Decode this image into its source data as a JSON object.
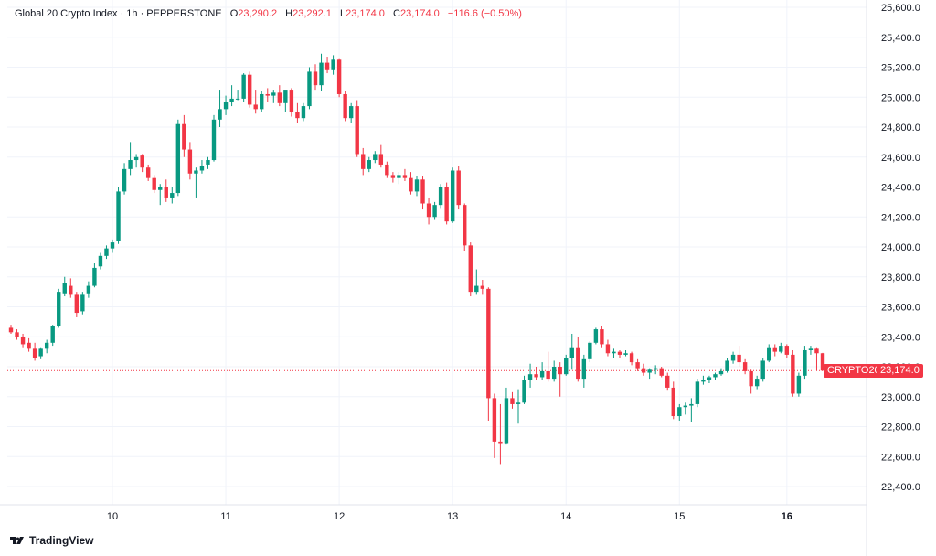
{
  "header": {
    "title": "Global 20 Crypto Index · 1h · PEPPERSTONE",
    "o_label": "O",
    "o_value": "23,290.2",
    "h_label": "H",
    "h_value": "23,292.1",
    "l_label": "L",
    "l_value": "23,174.0",
    "c_label": "C",
    "c_value": "23,174.0",
    "change": "−116.6 (−0.50%)"
  },
  "price_tags": {
    "symbol": "CRYPTO20",
    "last": "23,174.0"
  },
  "brand": {
    "name": "TradingView",
    "icon": "tradingview-logo-icon"
  },
  "colors": {
    "up": "#089981",
    "down": "#f23645",
    "grid": "#f0f3fa",
    "text": "#131722"
  },
  "chart_data": {
    "type": "candlestick",
    "ylim": [
      22300,
      25600
    ],
    "y_ticks": [
      "25,600.0",
      "25,400.0",
      "25,200.0",
      "25,000.0",
      "24,800.0",
      "24,600.0",
      "24,400.0",
      "24,200.0",
      "24,000.0",
      "23,800.0",
      "23,600.0",
      "23,400.0",
      "23,200.0",
      "23,000.0",
      "22,800.0",
      "22,600.0",
      "22,400.0"
    ],
    "y_tick_values": [
      25600,
      25400,
      25200,
      25000,
      24800,
      24600,
      24400,
      24200,
      24000,
      23800,
      23600,
      23400,
      23200,
      23000,
      22800,
      22600,
      22400
    ],
    "x_ticks": [
      {
        "label": "10",
        "bar": 17
      },
      {
        "label": "11",
        "bar": 36
      },
      {
        "label": "12",
        "bar": 55
      },
      {
        "label": "13",
        "bar": 74
      },
      {
        "label": "14",
        "bar": 93
      },
      {
        "label": "15",
        "bar": 112
      },
      {
        "label": "16",
        "bar": 130
      }
    ],
    "last_price": 23174.0,
    "candles": [
      {
        "o": 23460,
        "h": 23480,
        "l": 23420,
        "c": 23430
      },
      {
        "o": 23430,
        "h": 23450,
        "l": 23380,
        "c": 23400
      },
      {
        "o": 23400,
        "h": 23420,
        "l": 23330,
        "c": 23350
      },
      {
        "o": 23360,
        "h": 23390,
        "l": 23300,
        "c": 23320
      },
      {
        "o": 23320,
        "h": 23360,
        "l": 23240,
        "c": 23260
      },
      {
        "o": 23270,
        "h": 23330,
        "l": 23250,
        "c": 23320
      },
      {
        "o": 23320,
        "h": 23380,
        "l": 23290,
        "c": 23360
      },
      {
        "o": 23360,
        "h": 23480,
        "l": 23340,
        "c": 23470
      },
      {
        "o": 23470,
        "h": 23720,
        "l": 23460,
        "c": 23700
      },
      {
        "o": 23690,
        "h": 23800,
        "l": 23670,
        "c": 23760
      },
      {
        "o": 23740,
        "h": 23790,
        "l": 23660,
        "c": 23680
      },
      {
        "o": 23680,
        "h": 23700,
        "l": 23530,
        "c": 23560
      },
      {
        "o": 23570,
        "h": 23700,
        "l": 23550,
        "c": 23680
      },
      {
        "o": 23690,
        "h": 23770,
        "l": 23660,
        "c": 23740
      },
      {
        "o": 23740,
        "h": 23890,
        "l": 23730,
        "c": 23860
      },
      {
        "o": 23870,
        "h": 23960,
        "l": 23850,
        "c": 23940
      },
      {
        "o": 23940,
        "h": 24010,
        "l": 23920,
        "c": 23990
      },
      {
        "o": 23990,
        "h": 24050,
        "l": 23960,
        "c": 24030
      },
      {
        "o": 24040,
        "h": 24400,
        "l": 24020,
        "c": 24370
      },
      {
        "o": 24370,
        "h": 24560,
        "l": 24350,
        "c": 24520
      },
      {
        "o": 24520,
        "h": 24700,
        "l": 24480,
        "c": 24580
      },
      {
        "o": 24580,
        "h": 24620,
        "l": 24530,
        "c": 24600
      },
      {
        "o": 24610,
        "h": 24620,
        "l": 24500,
        "c": 24530
      },
      {
        "o": 24530,
        "h": 24550,
        "l": 24440,
        "c": 24460
      },
      {
        "o": 24460,
        "h": 24480,
        "l": 24360,
        "c": 24380
      },
      {
        "o": 24380,
        "h": 24420,
        "l": 24280,
        "c": 24400
      },
      {
        "o": 24400,
        "h": 24450,
        "l": 24300,
        "c": 24330
      },
      {
        "o": 24330,
        "h": 24400,
        "l": 24290,
        "c": 24360
      },
      {
        "o": 24360,
        "h": 24850,
        "l": 24340,
        "c": 24820
      },
      {
        "o": 24820,
        "h": 24880,
        "l": 24600,
        "c": 24650
      },
      {
        "o": 24650,
        "h": 24700,
        "l": 24450,
        "c": 24490
      },
      {
        "o": 24490,
        "h": 24530,
        "l": 24330,
        "c": 24510
      },
      {
        "o": 24510,
        "h": 24580,
        "l": 24490,
        "c": 24540
      },
      {
        "o": 24550,
        "h": 24600,
        "l": 24520,
        "c": 24580
      },
      {
        "o": 24580,
        "h": 24880,
        "l": 24570,
        "c": 24850
      },
      {
        "o": 24850,
        "h": 25050,
        "l": 24800,
        "c": 24920
      },
      {
        "o": 24920,
        "h": 25010,
        "l": 24880,
        "c": 24970
      },
      {
        "o": 24970,
        "h": 25080,
        "l": 24940,
        "c": 24990
      },
      {
        "o": 24990,
        "h": 25050,
        "l": 24980,
        "c": 24990
      },
      {
        "o": 24990,
        "h": 25160,
        "l": 24970,
        "c": 25150
      },
      {
        "o": 25150,
        "h": 25170,
        "l": 24930,
        "c": 24950
      },
      {
        "o": 24950,
        "h": 25050,
        "l": 24890,
        "c": 24920
      },
      {
        "o": 24920,
        "h": 25040,
        "l": 24900,
        "c": 25020
      },
      {
        "o": 25020,
        "h": 25060,
        "l": 24970,
        "c": 25010
      },
      {
        "o": 25010,
        "h": 25050,
        "l": 24960,
        "c": 25030
      },
      {
        "o": 25030,
        "h": 25080,
        "l": 24940,
        "c": 24960
      },
      {
        "o": 24960,
        "h": 25040,
        "l": 24900,
        "c": 25050
      },
      {
        "o": 25050,
        "h": 25060,
        "l": 24870,
        "c": 24900
      },
      {
        "o": 24900,
        "h": 24960,
        "l": 24830,
        "c": 24860
      },
      {
        "o": 24860,
        "h": 24960,
        "l": 24840,
        "c": 24940
      },
      {
        "o": 24940,
        "h": 25200,
        "l": 24920,
        "c": 25170
      },
      {
        "o": 25170,
        "h": 25220,
        "l": 25050,
        "c": 25080
      },
      {
        "o": 25080,
        "h": 25290,
        "l": 25040,
        "c": 25230
      },
      {
        "o": 25230,
        "h": 25270,
        "l": 25160,
        "c": 25180
      },
      {
        "o": 25180,
        "h": 25280,
        "l": 25150,
        "c": 25250
      },
      {
        "o": 25250,
        "h": 25260,
        "l": 25000,
        "c": 25020
      },
      {
        "o": 25020,
        "h": 25040,
        "l": 24840,
        "c": 24860
      },
      {
        "o": 24860,
        "h": 24960,
        "l": 24830,
        "c": 24940
      },
      {
        "o": 24940,
        "h": 24980,
        "l": 24600,
        "c": 24620
      },
      {
        "o": 24620,
        "h": 24660,
        "l": 24480,
        "c": 24520
      },
      {
        "o": 24520,
        "h": 24600,
        "l": 24500,
        "c": 24580
      },
      {
        "o": 24580,
        "h": 24640,
        "l": 24560,
        "c": 24620
      },
      {
        "o": 24620,
        "h": 24680,
        "l": 24530,
        "c": 24550
      },
      {
        "o": 24550,
        "h": 24570,
        "l": 24460,
        "c": 24480
      },
      {
        "o": 24480,
        "h": 24500,
        "l": 24430,
        "c": 24460
      },
      {
        "o": 24460,
        "h": 24500,
        "l": 24420,
        "c": 24480
      },
      {
        "o": 24480,
        "h": 24520,
        "l": 24440,
        "c": 24460
      },
      {
        "o": 24460,
        "h": 24500,
        "l": 24350,
        "c": 24370
      },
      {
        "o": 24370,
        "h": 24470,
        "l": 24340,
        "c": 24450
      },
      {
        "o": 24450,
        "h": 24470,
        "l": 24250,
        "c": 24290
      },
      {
        "o": 24290,
        "h": 24330,
        "l": 24150,
        "c": 24200
      },
      {
        "o": 24200,
        "h": 24300,
        "l": 24180,
        "c": 24280
      },
      {
        "o": 24280,
        "h": 24420,
        "l": 24260,
        "c": 24400
      },
      {
        "o": 24400,
        "h": 24430,
        "l": 24150,
        "c": 24170
      },
      {
        "o": 24170,
        "h": 24530,
        "l": 24160,
        "c": 24510
      },
      {
        "o": 24510,
        "h": 24540,
        "l": 24250,
        "c": 24280
      },
      {
        "o": 24280,
        "h": 24290,
        "l": 23970,
        "c": 24010
      },
      {
        "o": 24010,
        "h": 24030,
        "l": 23670,
        "c": 23700
      },
      {
        "o": 23700,
        "h": 23850,
        "l": 23680,
        "c": 23740
      },
      {
        "o": 23740,
        "h": 23780,
        "l": 23680,
        "c": 23720
      },
      {
        "o": 23720,
        "h": 23730,
        "l": 22840,
        "c": 22990
      },
      {
        "o": 22990,
        "h": 23020,
        "l": 22590,
        "c": 22700
      },
      {
        "o": 22700,
        "h": 22950,
        "l": 22550,
        "c": 22690
      },
      {
        "o": 22690,
        "h": 23060,
        "l": 22680,
        "c": 22990
      },
      {
        "o": 22990,
        "h": 23030,
        "l": 22920,
        "c": 22950
      },
      {
        "o": 22950,
        "h": 23050,
        "l": 22820,
        "c": 22960
      },
      {
        "o": 22960,
        "h": 23140,
        "l": 22950,
        "c": 23110
      },
      {
        "o": 23110,
        "h": 23220,
        "l": 23060,
        "c": 23150
      },
      {
        "o": 23150,
        "h": 23200,
        "l": 23110,
        "c": 23130
      },
      {
        "o": 23130,
        "h": 23230,
        "l": 23110,
        "c": 23170
      },
      {
        "o": 23170,
        "h": 23300,
        "l": 23100,
        "c": 23120
      },
      {
        "o": 23120,
        "h": 23240,
        "l": 23100,
        "c": 23200
      },
      {
        "o": 23200,
        "h": 23230,
        "l": 23000,
        "c": 23150
      },
      {
        "o": 23150,
        "h": 23280,
        "l": 23140,
        "c": 23260
      },
      {
        "o": 23260,
        "h": 23420,
        "l": 23180,
        "c": 23330
      },
      {
        "o": 23330,
        "h": 23400,
        "l": 23100,
        "c": 23120
      },
      {
        "o": 23120,
        "h": 23280,
        "l": 23060,
        "c": 23250
      },
      {
        "o": 23250,
        "h": 23370,
        "l": 23230,
        "c": 23360
      },
      {
        "o": 23360,
        "h": 23460,
        "l": 23350,
        "c": 23450
      },
      {
        "o": 23450,
        "h": 23470,
        "l": 23330,
        "c": 23350
      },
      {
        "o": 23350,
        "h": 23380,
        "l": 23270,
        "c": 23290
      },
      {
        "o": 23290,
        "h": 23320,
        "l": 23260,
        "c": 23300
      },
      {
        "o": 23300,
        "h": 23310,
        "l": 23260,
        "c": 23280
      },
      {
        "o": 23280,
        "h": 23310,
        "l": 23270,
        "c": 23290
      },
      {
        "o": 23290,
        "h": 23300,
        "l": 23210,
        "c": 23230
      },
      {
        "o": 23230,
        "h": 23250,
        "l": 23170,
        "c": 23190
      },
      {
        "o": 23190,
        "h": 23220,
        "l": 23140,
        "c": 23160
      },
      {
        "o": 23160,
        "h": 23190,
        "l": 23120,
        "c": 23180
      },
      {
        "o": 23180,
        "h": 23210,
        "l": 23150,
        "c": 23190
      },
      {
        "o": 23190,
        "h": 23200,
        "l": 23130,
        "c": 23140
      },
      {
        "o": 23140,
        "h": 23160,
        "l": 23040,
        "c": 23060
      },
      {
        "o": 23060,
        "h": 23100,
        "l": 22850,
        "c": 22870
      },
      {
        "o": 22870,
        "h": 22950,
        "l": 22840,
        "c": 22930
      },
      {
        "o": 22930,
        "h": 22960,
        "l": 22880,
        "c": 22940
      },
      {
        "o": 22940,
        "h": 22990,
        "l": 22830,
        "c": 22950
      },
      {
        "o": 22950,
        "h": 23120,
        "l": 22930,
        "c": 23100
      },
      {
        "o": 23100,
        "h": 23140,
        "l": 23080,
        "c": 23110
      },
      {
        "o": 23110,
        "h": 23140,
        "l": 23090,
        "c": 23130
      },
      {
        "o": 23130,
        "h": 23160,
        "l": 23110,
        "c": 23150
      },
      {
        "o": 23150,
        "h": 23190,
        "l": 23140,
        "c": 23170
      },
      {
        "o": 23170,
        "h": 23260,
        "l": 23160,
        "c": 23240
      },
      {
        "o": 23240,
        "h": 23300,
        "l": 23220,
        "c": 23280
      },
      {
        "o": 23280,
        "h": 23340,
        "l": 23200,
        "c": 23230
      },
      {
        "o": 23230,
        "h": 23250,
        "l": 23150,
        "c": 23170
      },
      {
        "o": 23170,
        "h": 23180,
        "l": 23020,
        "c": 23070
      },
      {
        "o": 23070,
        "h": 23140,
        "l": 23050,
        "c": 23120
      },
      {
        "o": 23120,
        "h": 23260,
        "l": 23100,
        "c": 23240
      },
      {
        "o": 23240,
        "h": 23350,
        "l": 23230,
        "c": 23330
      },
      {
        "o": 23330,
        "h": 23350,
        "l": 23270,
        "c": 23300
      },
      {
        "o": 23300,
        "h": 23360,
        "l": 23290,
        "c": 23340
      },
      {
        "o": 23340,
        "h": 23350,
        "l": 23260,
        "c": 23280
      },
      {
        "o": 23280,
        "h": 23310,
        "l": 23000,
        "c": 23020
      },
      {
        "o": 23020,
        "h": 23160,
        "l": 23000,
        "c": 23140
      },
      {
        "o": 23140,
        "h": 23340,
        "l": 23120,
        "c": 23310
      },
      {
        "o": 23310,
        "h": 23340,
        "l": 23280,
        "c": 23320
      },
      {
        "o": 23320,
        "h": 23330,
        "l": 23174,
        "c": 23290
      },
      {
        "o": 23290,
        "h": 23292.1,
        "l": 23174,
        "c": 23174
      }
    ]
  }
}
